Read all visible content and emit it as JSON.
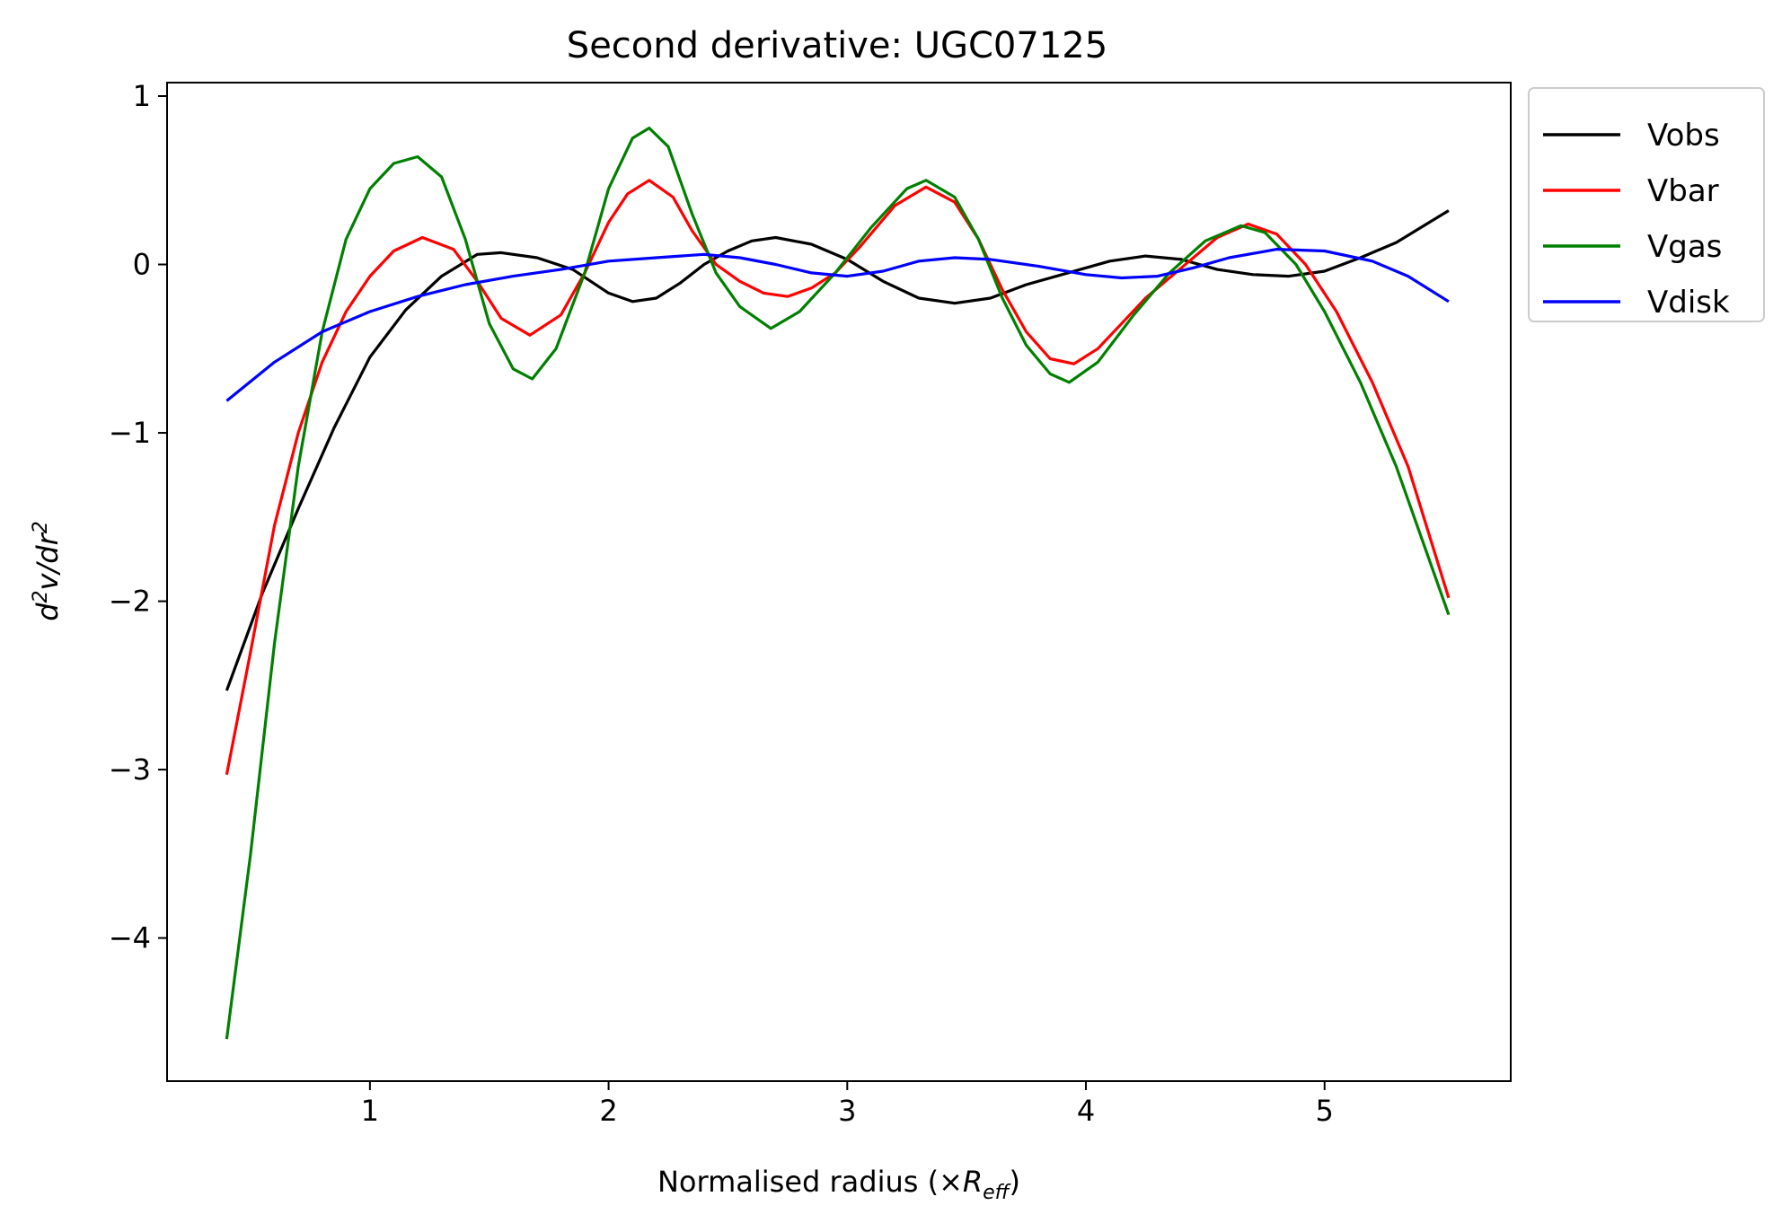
{
  "chart_data": {
    "type": "line",
    "title": "Second derivative: UGC07125",
    "xlabel": {
      "pre": "Normalised radius (×",
      "var": "R",
      "sub": "eff",
      "post": ")"
    },
    "ylabel": {
      "d": "d",
      "sup1": "2",
      "mid": "v/dr",
      "sup2": "2"
    },
    "xlim": [
      0.15,
      5.78
    ],
    "ylim": [
      -4.85,
      1.08
    ],
    "xticks": [
      1,
      2,
      3,
      4,
      5
    ],
    "yticks": [
      1,
      0,
      -1,
      -2,
      -3,
      -4
    ],
    "xtick_labels": [
      "1",
      "2",
      "3",
      "4",
      "5"
    ],
    "ytick_labels": [
      "1",
      "0",
      "−1",
      "−2",
      "−3",
      "−4"
    ],
    "grid": false,
    "legend": {
      "placement": "outside-top-right"
    },
    "series": [
      {
        "name": "Vobs",
        "color": "#000000",
        "points": [
          [
            0.4,
            -2.53
          ],
          [
            0.55,
            -1.95
          ],
          [
            0.7,
            -1.45
          ],
          [
            0.85,
            -0.97
          ],
          [
            1.0,
            -0.55
          ],
          [
            1.15,
            -0.27
          ],
          [
            1.3,
            -0.07
          ],
          [
            1.45,
            0.06
          ],
          [
            1.55,
            0.07
          ],
          [
            1.7,
            0.04
          ],
          [
            1.85,
            -0.03
          ],
          [
            2.0,
            -0.17
          ],
          [
            2.1,
            -0.22
          ],
          [
            2.2,
            -0.2
          ],
          [
            2.3,
            -0.11
          ],
          [
            2.4,
            0.0
          ],
          [
            2.5,
            0.08
          ],
          [
            2.6,
            0.14
          ],
          [
            2.7,
            0.16
          ],
          [
            2.85,
            0.12
          ],
          [
            3.0,
            0.03
          ],
          [
            3.15,
            -0.1
          ],
          [
            3.3,
            -0.2
          ],
          [
            3.45,
            -0.23
          ],
          [
            3.6,
            -0.2
          ],
          [
            3.75,
            -0.12
          ],
          [
            3.9,
            -0.06
          ],
          [
            4.1,
            0.02
          ],
          [
            4.25,
            0.05
          ],
          [
            4.4,
            0.03
          ],
          [
            4.55,
            -0.03
          ],
          [
            4.7,
            -0.06
          ],
          [
            4.85,
            -0.07
          ],
          [
            5.0,
            -0.04
          ],
          [
            5.15,
            0.04
          ],
          [
            5.3,
            0.13
          ],
          [
            5.52,
            0.32
          ]
        ]
      },
      {
        "name": "Vbar",
        "color": "#ff0000",
        "points": [
          [
            0.4,
            -3.03
          ],
          [
            0.5,
            -2.3
          ],
          [
            0.6,
            -1.55
          ],
          [
            0.7,
            -1.0
          ],
          [
            0.8,
            -0.58
          ],
          [
            0.9,
            -0.28
          ],
          [
            1.0,
            -0.07
          ],
          [
            1.1,
            0.08
          ],
          [
            1.22,
            0.16
          ],
          [
            1.35,
            0.09
          ],
          [
            1.45,
            -0.1
          ],
          [
            1.55,
            -0.32
          ],
          [
            1.67,
            -0.42
          ],
          [
            1.8,
            -0.3
          ],
          [
            1.9,
            -0.05
          ],
          [
            2.0,
            0.25
          ],
          [
            2.08,
            0.42
          ],
          [
            2.17,
            0.5
          ],
          [
            2.27,
            0.4
          ],
          [
            2.35,
            0.2
          ],
          [
            2.45,
            0.0
          ],
          [
            2.55,
            -0.1
          ],
          [
            2.65,
            -0.17
          ],
          [
            2.75,
            -0.19
          ],
          [
            2.85,
            -0.14
          ],
          [
            2.95,
            -0.05
          ],
          [
            3.05,
            0.1
          ],
          [
            3.2,
            0.35
          ],
          [
            3.33,
            0.46
          ],
          [
            3.45,
            0.37
          ],
          [
            3.55,
            0.15
          ],
          [
            3.65,
            -0.15
          ],
          [
            3.75,
            -0.4
          ],
          [
            3.85,
            -0.56
          ],
          [
            3.95,
            -0.59
          ],
          [
            4.05,
            -0.5
          ],
          [
            4.15,
            -0.35
          ],
          [
            4.25,
            -0.2
          ],
          [
            4.4,
            -0.02
          ],
          [
            4.55,
            0.16
          ],
          [
            4.68,
            0.24
          ],
          [
            4.8,
            0.18
          ],
          [
            4.92,
            0.0
          ],
          [
            5.05,
            -0.28
          ],
          [
            5.2,
            -0.7
          ],
          [
            5.35,
            -1.2
          ],
          [
            5.52,
            -1.98
          ]
        ]
      },
      {
        "name": "Vgas",
        "color": "#008000",
        "points": [
          [
            0.4,
            -4.6
          ],
          [
            0.5,
            -3.5
          ],
          [
            0.6,
            -2.25
          ],
          [
            0.7,
            -1.2
          ],
          [
            0.8,
            -0.4
          ],
          [
            0.9,
            0.15
          ],
          [
            1.0,
            0.45
          ],
          [
            1.1,
            0.6
          ],
          [
            1.2,
            0.64
          ],
          [
            1.3,
            0.52
          ],
          [
            1.4,
            0.15
          ],
          [
            1.5,
            -0.35
          ],
          [
            1.6,
            -0.62
          ],
          [
            1.68,
            -0.68
          ],
          [
            1.78,
            -0.5
          ],
          [
            1.9,
            -0.05
          ],
          [
            2.0,
            0.45
          ],
          [
            2.1,
            0.75
          ],
          [
            2.17,
            0.81
          ],
          [
            2.25,
            0.7
          ],
          [
            2.35,
            0.3
          ],
          [
            2.45,
            -0.05
          ],
          [
            2.55,
            -0.25
          ],
          [
            2.68,
            -0.38
          ],
          [
            2.8,
            -0.28
          ],
          [
            2.95,
            -0.05
          ],
          [
            3.1,
            0.22
          ],
          [
            3.25,
            0.45
          ],
          [
            3.33,
            0.5
          ],
          [
            3.45,
            0.4
          ],
          [
            3.55,
            0.15
          ],
          [
            3.65,
            -0.2
          ],
          [
            3.75,
            -0.48
          ],
          [
            3.85,
            -0.65
          ],
          [
            3.93,
            -0.7
          ],
          [
            4.05,
            -0.58
          ],
          [
            4.2,
            -0.3
          ],
          [
            4.35,
            -0.05
          ],
          [
            4.5,
            0.14
          ],
          [
            4.65,
            0.23
          ],
          [
            4.75,
            0.19
          ],
          [
            4.88,
            0.0
          ],
          [
            5.0,
            -0.28
          ],
          [
            5.15,
            -0.7
          ],
          [
            5.3,
            -1.2
          ],
          [
            5.52,
            -2.08
          ]
        ]
      },
      {
        "name": "Vdisk",
        "color": "#0000ff",
        "points": [
          [
            0.4,
            -0.81
          ],
          [
            0.6,
            -0.58
          ],
          [
            0.8,
            -0.4
          ],
          [
            1.0,
            -0.28
          ],
          [
            1.2,
            -0.19
          ],
          [
            1.4,
            -0.12
          ],
          [
            1.6,
            -0.07
          ],
          [
            1.8,
            -0.03
          ],
          [
            2.0,
            0.02
          ],
          [
            2.2,
            0.04
          ],
          [
            2.4,
            0.06
          ],
          [
            2.55,
            0.04
          ],
          [
            2.7,
            0.0
          ],
          [
            2.85,
            -0.05
          ],
          [
            3.0,
            -0.07
          ],
          [
            3.15,
            -0.04
          ],
          [
            3.3,
            0.02
          ],
          [
            3.45,
            0.04
          ],
          [
            3.6,
            0.03
          ],
          [
            3.8,
            -0.01
          ],
          [
            4.0,
            -0.06
          ],
          [
            4.15,
            -0.08
          ],
          [
            4.3,
            -0.07
          ],
          [
            4.45,
            -0.02
          ],
          [
            4.6,
            0.04
          ],
          [
            4.8,
            0.09
          ],
          [
            5.0,
            0.08
          ],
          [
            5.2,
            0.02
          ],
          [
            5.35,
            -0.07
          ],
          [
            5.52,
            -0.22
          ]
        ]
      }
    ]
  }
}
